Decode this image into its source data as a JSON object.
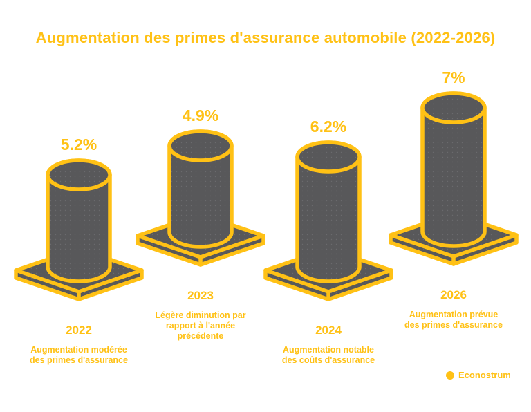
{
  "title": "Augmentation des primes d'assurance automobile (2022-2026)",
  "brand": {
    "name": "Econostrum"
  },
  "colors": {
    "accent": "#FFC115",
    "bar_fill": "#58585A",
    "bar_dot": "#6A6A6D",
    "background": "#FFFFFF"
  },
  "chart_data": {
    "type": "bar",
    "style": "isometric-cylinders",
    "title": "Augmentation des primes d'assurance automobile (2022-2026)",
    "unit": "%",
    "categories": [
      "2022",
      "2023",
      "2024",
      "2026"
    ],
    "values": [
      5.2,
      4.9,
      6.2,
      7
    ],
    "value_labels": [
      "5.2%",
      "4.9%",
      "6.2%",
      "7%"
    ],
    "descriptions": [
      [
        "Augmentation modérée",
        "des primes d'assurance"
      ],
      [
        "Légère diminution par",
        "rapport à l'année",
        "précédente"
      ],
      [
        "Augmentation notable",
        "des coûts d'assurance"
      ],
      [
        "Augmentation prévue",
        "des primes d'assurance"
      ]
    ],
    "ylim": [
      0,
      7.5
    ],
    "grid": false,
    "legend": false
  }
}
